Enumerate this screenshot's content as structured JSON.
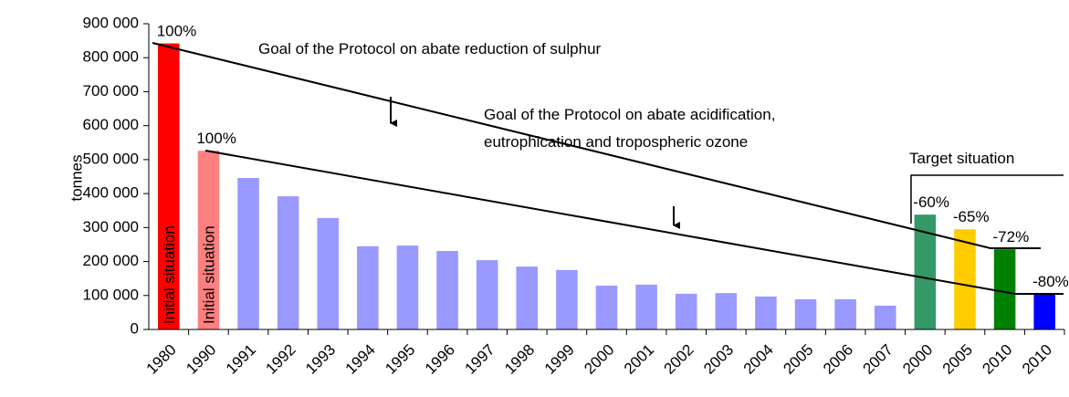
{
  "chart_data": {
    "type": "bar",
    "y_label": "tonnes",
    "categories": [
      "1980",
      "1990",
      "1991",
      "1992",
      "1993",
      "1994",
      "1995",
      "1996",
      "1997",
      "1998",
      "1999",
      "2000",
      "2001",
      "2002",
      "2003",
      "2004",
      "2005",
      "2006",
      "2007",
      "2000",
      "2005",
      "2010",
      "2010"
    ],
    "values": [
      842000,
      526000,
      446000,
      392000,
      328000,
      245000,
      247000,
      231000,
      204000,
      185000,
      175000,
      129000,
      132000,
      105000,
      107000,
      97000,
      89000,
      89000,
      70000,
      338000,
      295000,
      236000,
      105000
    ],
    "colors": [
      "#ff0000",
      "#ff8080",
      "#9999ff",
      "#9999ff",
      "#9999ff",
      "#9999ff",
      "#9999ff",
      "#9999ff",
      "#9999ff",
      "#9999ff",
      "#9999ff",
      "#9999ff",
      "#9999ff",
      "#9999ff",
      "#9999ff",
      "#9999ff",
      "#9999ff",
      "#9999ff",
      "#9999ff",
      "#339966",
      "#ffcc00",
      "#008000",
      "#0000ff"
    ],
    "bar_annotations": [
      "100%",
      "100%",
      null,
      null,
      null,
      null,
      null,
      null,
      null,
      null,
      null,
      null,
      null,
      null,
      null,
      null,
      null,
      null,
      null,
      "-60%",
      "-65%",
      "-72%",
      "-80%"
    ],
    "inside_labels": [
      "Initial situation",
      "Initial situation",
      null,
      null,
      null,
      null,
      null,
      null,
      null,
      null,
      null,
      null,
      null,
      null,
      null,
      null,
      null,
      null,
      null,
      null,
      null,
      null,
      null
    ],
    "annotations": [
      "Goal of the Protocol on abate reduction of sulphur",
      "Goal of the Protocol on abate acidification,",
      "eutrophication and tropospheric ozone",
      "Target situation"
    ],
    "ylim": [
      0,
      900000
    ],
    "yticks": [
      {
        "value": 0,
        "label": "0"
      },
      {
        "value": 100000,
        "label": "100 000"
      },
      {
        "value": 200000,
        "label": "200 000"
      },
      {
        "value": 300000,
        "label": "300 000"
      },
      {
        "value": 400000,
        "label": "400 000"
      },
      {
        "value": 500000,
        "label": "500 000"
      },
      {
        "value": 600000,
        "label": "600 000"
      },
      {
        "value": 700000,
        "label": "700 000"
      },
      {
        "value": 800000,
        "label": "800 000"
      },
      {
        "value": 900000,
        "label": "900 000"
      }
    ]
  }
}
